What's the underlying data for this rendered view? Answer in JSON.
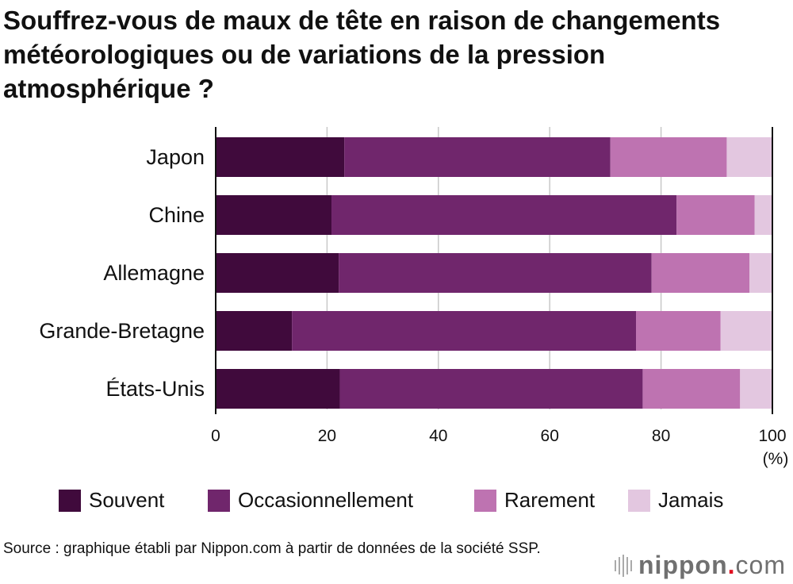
{
  "title": "Souffrez-vous de maux de tête en raison de changements météorologiques ou de variations de la pression atmosphérique ?",
  "chart_data": {
    "type": "bar",
    "orientation": "horizontal",
    "stacked": true,
    "categories": [
      "Japon",
      "Chine",
      "Allemagne",
      "Grande-Bretagne",
      "États-Unis"
    ],
    "series": [
      {
        "name": "Souvent",
        "color": "#400a3c",
        "values": [
          23.1,
          20.8,
          22.1,
          13.7,
          22.3
        ]
      },
      {
        "name": "Occasionnellement",
        "color": "#70266c",
        "values": [
          47.8,
          62.0,
          56.2,
          61.8,
          54.4
        ]
      },
      {
        "name": "Rarement",
        "color": "#be73b1",
        "values": [
          20.9,
          14.0,
          17.6,
          15.2,
          17.5
        ]
      },
      {
        "name": "Jamais",
        "color": "#e3c7e0",
        "values": [
          8.2,
          3.2,
          4.1,
          9.3,
          5.8
        ]
      }
    ],
    "xlim": [
      0,
      100
    ],
    "xticks": [
      "0",
      "20",
      "40",
      "60",
      "80",
      "100"
    ],
    "xunit": "(%)",
    "grid": true,
    "legend": "bottom"
  },
  "source": "Source : graphique établi par Nippon.com à partir de données de la société SSP.",
  "logo": {
    "name": "nippon",
    "dot": ".",
    "tld": "com"
  }
}
